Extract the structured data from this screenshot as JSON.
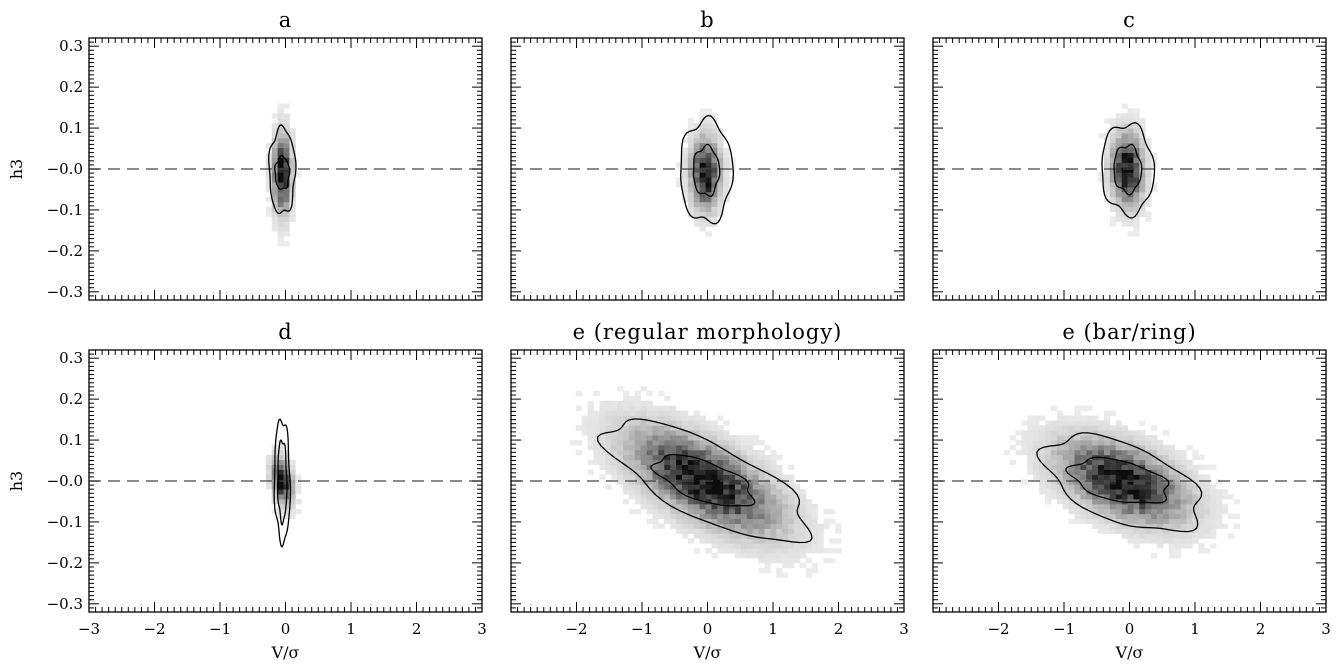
{
  "chart_data": {
    "type": "heatmap",
    "layout": "2x3 grid",
    "shared_axes": {
      "xlabel": "V/σ",
      "ylabel": "h3",
      "xlim": [
        -3,
        3
      ],
      "ylim": [
        -0.32,
        0.32
      ],
      "xticks": [
        -3,
        -2,
        -1,
        0,
        1,
        2,
        3
      ],
      "xtick_labels": [
        "−3",
        "−2",
        "−1",
        "0",
        "1",
        "2",
        "3"
      ],
      "yticks": [
        -0.3,
        -0.2,
        -0.1,
        0.0,
        0.1,
        0.2,
        0.3
      ],
      "ytick_labels": [
        "−0.3",
        "−0.2",
        "−0.1",
        "−0.0",
        "0.1",
        "0.2",
        "0.3"
      ],
      "reference_line": {
        "y": 0.0,
        "style": "dashed",
        "color": "#444444"
      },
      "colormap": "grayscale (white = low density, black = high density)",
      "grid": false
    },
    "panels": [
      {
        "title": "a",
        "density_center": [
          -0.05,
          -0.01
        ],
        "spread_x": 0.08,
        "spread_y": 0.055,
        "contours": [
          {
            "level": "outer",
            "center": [
              -0.05,
              -0.005
            ],
            "half_width_x": 0.2,
            "half_height_y": 0.105,
            "tilt": 0.0
          },
          {
            "level": "inner",
            "center": [
              -0.05,
              -0.01
            ],
            "half_width_x": 0.11,
            "half_height_y": 0.04,
            "tilt": 0.0
          }
        ]
      },
      {
        "title": "b",
        "density_center": [
          -0.03,
          -0.01
        ],
        "spread_x": 0.13,
        "spread_y": 0.05,
        "contours": [
          {
            "level": "outer",
            "center": [
              -0.02,
              -0.005
            ],
            "half_width_x": 0.4,
            "half_height_y": 0.125,
            "tilt": 0.0
          },
          {
            "level": "inner",
            "center": [
              -0.02,
              -0.005
            ],
            "half_width_x": 0.2,
            "half_height_y": 0.06,
            "tilt": 0.0
          }
        ]
      },
      {
        "title": "c",
        "density_center": [
          -0.03,
          0.0
        ],
        "spread_x": 0.14,
        "spread_y": 0.05,
        "contours": [
          {
            "level": "outer",
            "center": [
              -0.03,
              0.0
            ],
            "half_width_x": 0.4,
            "half_height_y": 0.11,
            "tilt": -0.015
          },
          {
            "level": "inner",
            "center": [
              -0.03,
              0.0
            ],
            "half_width_x": 0.21,
            "half_height_y": 0.058,
            "tilt": -0.01
          }
        ]
      },
      {
        "title": "d",
        "density_center": [
          -0.05,
          0.0
        ],
        "spread_x": 0.09,
        "spread_y": 0.03,
        "contours": [
          {
            "level": "outer",
            "center": [
              -0.05,
              0.0
            ],
            "half_width_x": 0.12,
            "half_height_y": 0.15,
            "tilt": -0.11
          },
          {
            "level": "inner",
            "center": [
              -0.05,
              0.0
            ],
            "half_width_x": 0.07,
            "half_height_y": 0.1,
            "tilt": -0.1
          }
        ]
      },
      {
        "title": "e (regular morphology)",
        "density_center": [
          -0.05,
          0.0
        ],
        "spread_x": 0.65,
        "spread_y": 0.055,
        "contours": [
          {
            "level": "outer",
            "center": [
              0.0,
              0.0
            ],
            "half_width_x": 1.55,
            "half_height_y": 0.1,
            "tilt": -0.07
          },
          {
            "level": "inner",
            "center": [
              -0.05,
              0.0
            ],
            "half_width_x": 0.75,
            "half_height_y": 0.05,
            "tilt": -0.05
          }
        ]
      },
      {
        "title": "e (bar/ring)",
        "density_center": [
          -0.1,
          0.0
        ],
        "spread_x": 0.55,
        "spread_y": 0.05,
        "contours": [
          {
            "level": "outer",
            "center": [
              -0.1,
              -0.005
            ],
            "half_width_x": 1.2,
            "half_height_y": 0.1,
            "tilt": -0.05
          },
          {
            "level": "inner",
            "center": [
              -0.15,
              0.0
            ],
            "half_width_x": 0.75,
            "half_height_y": 0.05,
            "tilt": -0.03
          }
        ]
      }
    ]
  }
}
